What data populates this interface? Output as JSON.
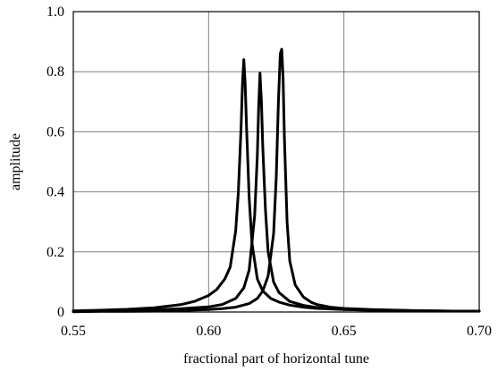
{
  "chart_data": {
    "type": "line",
    "title": "",
    "xlabel": "fractional part of horizontal tune",
    "ylabel": "amplitude",
    "xlim": [
      0.55,
      0.7
    ],
    "ylim": [
      0,
      1.0
    ],
    "x_ticks": [
      "0.55",
      "0.60",
      "0.65",
      "0.70"
    ],
    "y_ticks": [
      "0",
      "0.2",
      "0.4",
      "0.6",
      "0.8",
      "1.0"
    ],
    "grid": true,
    "legend": "none",
    "series": [
      {
        "x": [
          0.55,
          0.56,
          0.57,
          0.58,
          0.59,
          0.595,
          0.6,
          0.603,
          0.606,
          0.608,
          0.61,
          0.611,
          0.612,
          0.6125,
          0.613,
          0.6135,
          0.614,
          0.615,
          0.616,
          0.618,
          0.62,
          0.623,
          0.626,
          0.63,
          0.635,
          0.64,
          0.65,
          0.66,
          0.67,
          0.68,
          0.69,
          0.7
        ],
        "y": [
          0.004,
          0.006,
          0.009,
          0.014,
          0.025,
          0.036,
          0.055,
          0.075,
          0.11,
          0.15,
          0.27,
          0.4,
          0.62,
          0.76,
          0.84,
          0.76,
          0.62,
          0.38,
          0.23,
          0.11,
          0.07,
          0.045,
          0.033,
          0.023,
          0.016,
          0.012,
          0.008,
          0.006,
          0.005,
          0.004,
          0.003,
          0.003
        ]
      },
      {
        "x": [
          0.55,
          0.56,
          0.57,
          0.58,
          0.59,
          0.6,
          0.605,
          0.61,
          0.613,
          0.615,
          0.617,
          0.618,
          0.6185,
          0.619,
          0.6195,
          0.62,
          0.621,
          0.622,
          0.624,
          0.626,
          0.63,
          0.635,
          0.64,
          0.65,
          0.66,
          0.67,
          0.68,
          0.69,
          0.7
        ],
        "y": [
          0.002,
          0.003,
          0.005,
          0.007,
          0.011,
          0.017,
          0.025,
          0.045,
          0.08,
          0.14,
          0.32,
          0.52,
          0.68,
          0.795,
          0.7,
          0.55,
          0.34,
          0.2,
          0.1,
          0.065,
          0.035,
          0.022,
          0.015,
          0.009,
          0.006,
          0.005,
          0.004,
          0.003,
          0.003
        ]
      },
      {
        "x": [
          0.55,
          0.56,
          0.57,
          0.58,
          0.59,
          0.6,
          0.605,
          0.61,
          0.615,
          0.618,
          0.62,
          0.622,
          0.624,
          0.625,
          0.6258,
          0.6265,
          0.627,
          0.6275,
          0.628,
          0.629,
          0.63,
          0.632,
          0.635,
          0.638,
          0.64,
          0.645,
          0.65,
          0.66,
          0.67,
          0.68,
          0.69,
          0.7
        ],
        "y": [
          0.001,
          0.002,
          0.002,
          0.003,
          0.005,
          0.008,
          0.011,
          0.016,
          0.028,
          0.045,
          0.07,
          0.12,
          0.26,
          0.45,
          0.7,
          0.86,
          0.875,
          0.78,
          0.58,
          0.3,
          0.17,
          0.09,
          0.05,
          0.032,
          0.025,
          0.016,
          0.012,
          0.008,
          0.006,
          0.004,
          0.003,
          0.003
        ]
      }
    ]
  }
}
